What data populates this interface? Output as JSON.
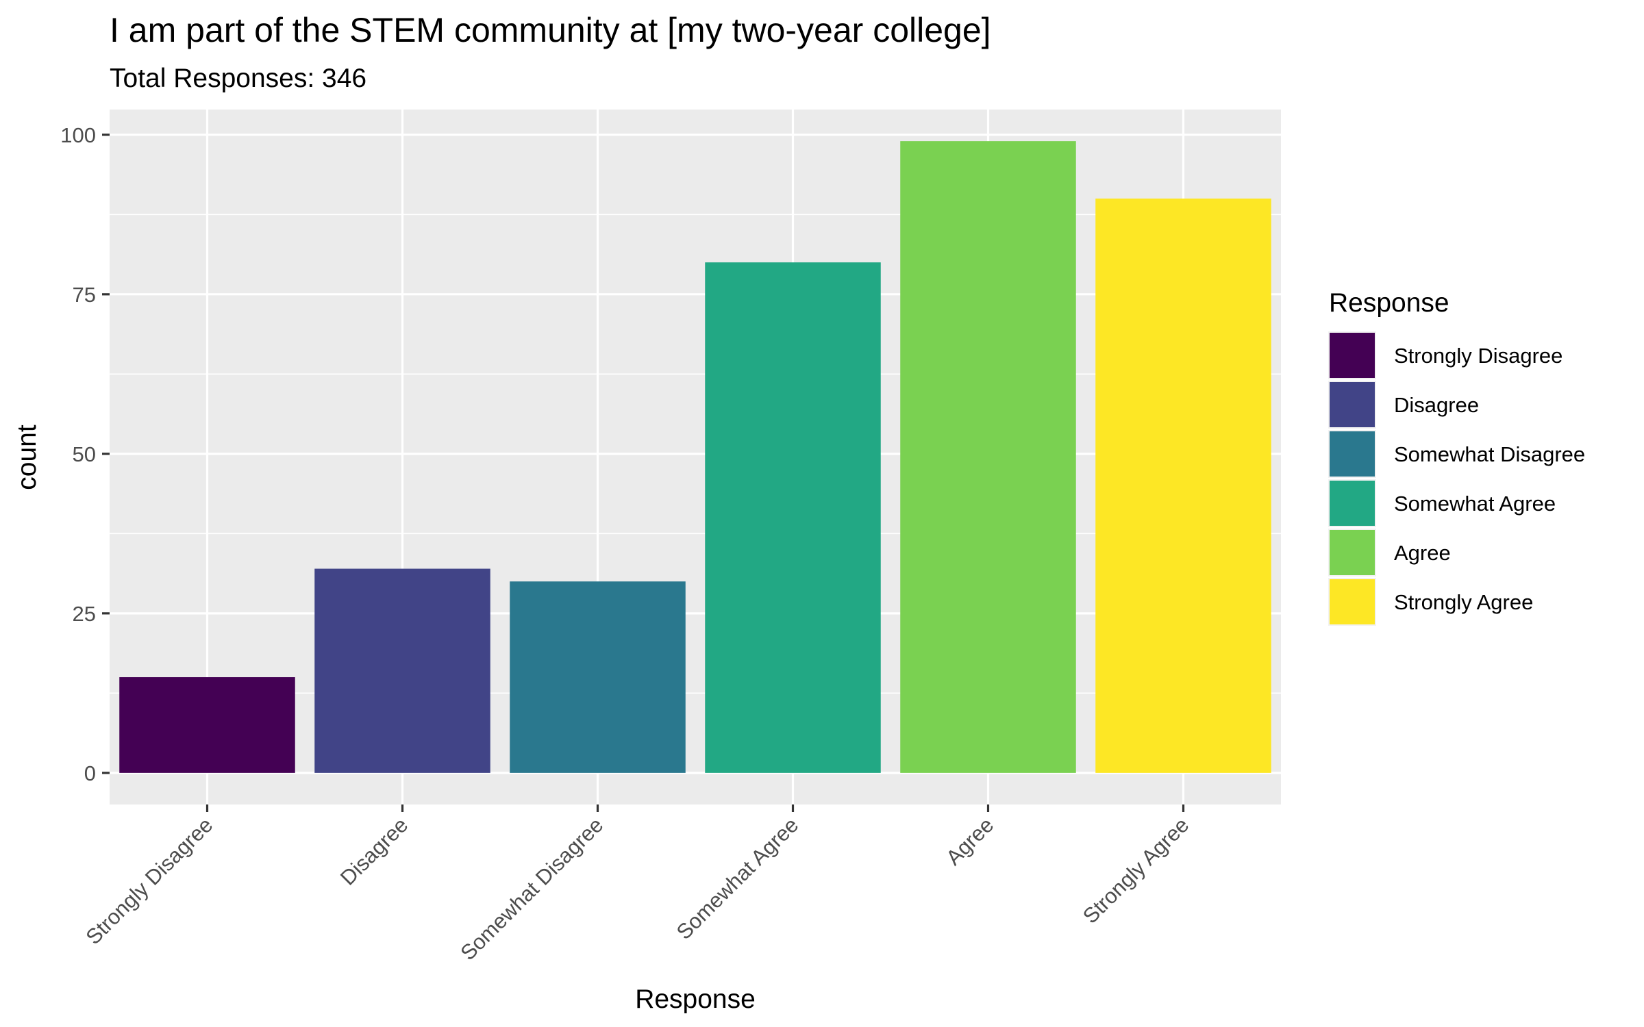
{
  "chart_data": {
    "type": "bar",
    "title": "I am part of the STEM community at [my two-year college]",
    "subtitle": "Total Responses: 346",
    "xlabel": "Response",
    "ylabel": "count",
    "categories": [
      "Strongly Disagree",
      "Disagree",
      "Somewhat Disagree",
      "Somewhat Agree",
      "Agree",
      "Strongly Agree"
    ],
    "values": [
      15,
      32,
      30,
      80,
      99,
      90
    ],
    "colors": [
      "#440154",
      "#414487",
      "#2A788E",
      "#22A884",
      "#7AD151",
      "#FDE725"
    ],
    "ylim": [
      -4.95,
      103.95
    ],
    "yticks": [
      0,
      25,
      50,
      75,
      100
    ],
    "grid": true,
    "panel_background": "#EBEBEB",
    "grid_color": "#FFFFFF",
    "legend": {
      "title": "Response",
      "position": "right",
      "entries": [
        "Strongly Disagree",
        "Disagree",
        "Somewhat Disagree",
        "Somewhat Agree",
        "Agree",
        "Strongly Agree"
      ]
    }
  }
}
